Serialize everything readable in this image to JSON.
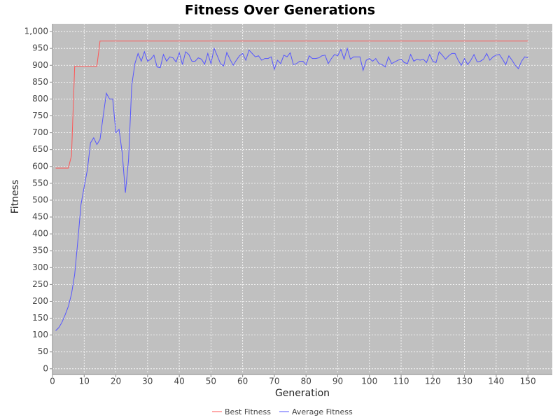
{
  "chart_data": {
    "type": "line",
    "title": "Fitness Over Generations",
    "x_label": "Generation",
    "y_label": "Fitness",
    "x": [
      1,
      2,
      3,
      4,
      5,
      6,
      7,
      8,
      9,
      10,
      11,
      12,
      13,
      14,
      15,
      16,
      17,
      18,
      19,
      20,
      21,
      22,
      23,
      24,
      25,
      26,
      27,
      28,
      29,
      30,
      31,
      32,
      33,
      34,
      35,
      36,
      37,
      38,
      39,
      40,
      41,
      42,
      43,
      44,
      45,
      46,
      47,
      48,
      49,
      50,
      51,
      52,
      53,
      54,
      55,
      56,
      57,
      58,
      59,
      60,
      61,
      62,
      63,
      64,
      65,
      66,
      67,
      68,
      69,
      70,
      71,
      72,
      73,
      74,
      75,
      76,
      77,
      78,
      79,
      80,
      81,
      82,
      83,
      84,
      85,
      86,
      87,
      88,
      89,
      90,
      91,
      92,
      93,
      94,
      95,
      96,
      97,
      98,
      99,
      100,
      101,
      102,
      103,
      104,
      105,
      106,
      107,
      108,
      109,
      110,
      111,
      112,
      113,
      114,
      115,
      116,
      117,
      118,
      119,
      120,
      121,
      122,
      123,
      124,
      125,
      126,
      127,
      128,
      129,
      130,
      131,
      132,
      133,
      134,
      135,
      136,
      137,
      138,
      139,
      140,
      141,
      142,
      143,
      144,
      145,
      146,
      147,
      148,
      149,
      150
    ],
    "series": [
      {
        "name": "Best Fitness",
        "color": "#ff5555",
        "values": [
          595,
          595,
          595,
          595,
          595,
          632,
          897,
          897,
          897,
          897,
          897,
          897,
          897,
          897,
          972,
          972,
          972,
          972,
          972,
          972,
          972,
          972,
          972,
          972,
          972,
          972,
          972,
          972,
          972,
          972,
          972,
          972,
          972,
          972,
          972,
          972,
          972,
          972,
          972,
          972,
          972,
          972,
          972,
          972,
          972,
          972,
          972,
          972,
          972,
          972,
          972,
          972,
          972,
          972,
          972,
          972,
          972,
          972,
          972,
          972,
          972,
          972,
          972,
          972,
          972,
          972,
          972,
          972,
          972,
          972,
          972,
          972,
          972,
          972,
          972,
          972,
          972,
          972,
          972,
          972,
          972,
          972,
          972,
          972,
          972,
          972,
          972,
          972,
          972,
          972,
          972,
          972,
          972,
          972,
          972,
          972,
          972,
          972,
          972,
          972,
          972,
          972,
          972,
          972,
          972,
          972,
          972,
          972,
          972,
          972,
          972,
          972,
          972,
          972,
          972,
          972,
          972,
          972,
          972,
          972,
          972,
          972,
          972,
          972,
          972,
          972,
          972,
          972,
          972,
          972,
          972,
          972,
          972,
          972,
          972,
          972,
          972,
          972,
          972,
          972,
          972,
          972,
          972,
          972,
          972,
          972,
          972,
          972,
          972,
          972
        ]
      },
      {
        "name": "Average Fitness",
        "color": "#5555ff",
        "values": [
          113,
          122,
          138,
          160,
          185,
          222,
          280,
          380,
          488,
          540,
          590,
          670,
          685,
          665,
          680,
          750,
          817,
          800,
          800,
          700,
          710,
          640,
          522,
          620,
          840,
          905,
          935,
          912,
          940,
          912,
          918,
          930,
          895,
          893,
          932,
          912,
          925,
          922,
          910,
          937,
          902,
          940,
          932,
          912,
          912,
          922,
          918,
          903,
          935,
          905,
          950,
          928,
          905,
          898,
          938,
          918,
          900,
          915,
          928,
          935,
          915,
          945,
          935,
          925,
          928,
          915,
          920,
          920,
          925,
          888,
          915,
          905,
          930,
          925,
          937,
          902,
          905,
          912,
          912,
          902,
          928,
          920,
          920,
          922,
          928,
          930,
          905,
          920,
          932,
          928,
          947,
          918,
          950,
          918,
          925,
          925,
          925,
          885,
          915,
          920,
          912,
          920,
          905,
          902,
          895,
          925,
          905,
          910,
          915,
          918,
          908,
          905,
          932,
          912,
          918,
          915,
          918,
          908,
          932,
          912,
          908,
          940,
          930,
          918,
          928,
          935,
          935,
          915,
          900,
          920,
          902,
          915,
          932,
          910,
          912,
          918,
          935,
          915,
          925,
          930,
          932,
          918,
          902,
          928,
          915,
          900,
          890,
          912,
          925,
          922
        ]
      }
    ],
    "xlim": [
      0,
      157.7
    ],
    "ylim": [
      -17,
      1023
    ],
    "xticks": [
      0,
      10,
      20,
      30,
      40,
      50,
      60,
      70,
      80,
      90,
      100,
      110,
      120,
      130,
      140,
      150
    ],
    "yticks": [
      0,
      50,
      100,
      150,
      200,
      250,
      300,
      350,
      400,
      450,
      500,
      550,
      600,
      650,
      700,
      750,
      800,
      850,
      900,
      950,
      {
        "value": 1000,
        "label": "1,000"
      }
    ],
    "grid": true
  }
}
